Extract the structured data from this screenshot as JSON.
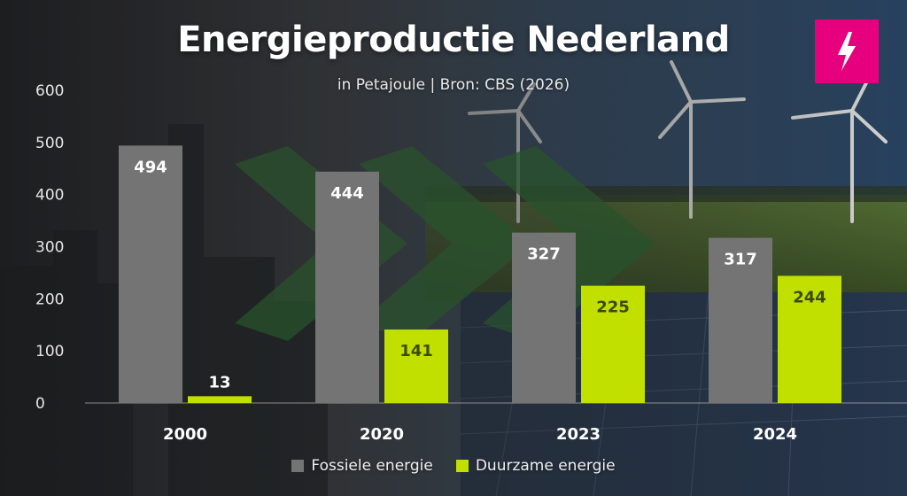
{
  "header": {
    "title": "Energieproductie Nederland",
    "subtitle": "in Petajoule | Bron: CBS (2026)"
  },
  "logo": {
    "icon": "lightning-bolt-icon",
    "color": "#e6007e"
  },
  "colors": {
    "fossil": "#747474",
    "renewable": "#c2e000",
    "renewable_label": "#3b4a00",
    "fossil_label": "#ffffff"
  },
  "chart_data": {
    "type": "bar",
    "title": "Energieproductie Nederland",
    "subtitle": "in Petajoule | Bron: CBS (2026)",
    "categories": [
      "2000",
      "2020",
      "2023",
      "2024"
    ],
    "series": [
      {
        "name": "Fossiele energie",
        "values": [
          494,
          444,
          327,
          317
        ]
      },
      {
        "name": "Duurzame energie",
        "values": [
          13,
          141,
          225,
          244
        ]
      }
    ],
    "ylim": [
      0,
      600
    ],
    "yticks": [
      "0",
      "100",
      "200",
      "300",
      "400",
      "500",
      "600"
    ],
    "grid": false,
    "legend": "bottom-center"
  }
}
